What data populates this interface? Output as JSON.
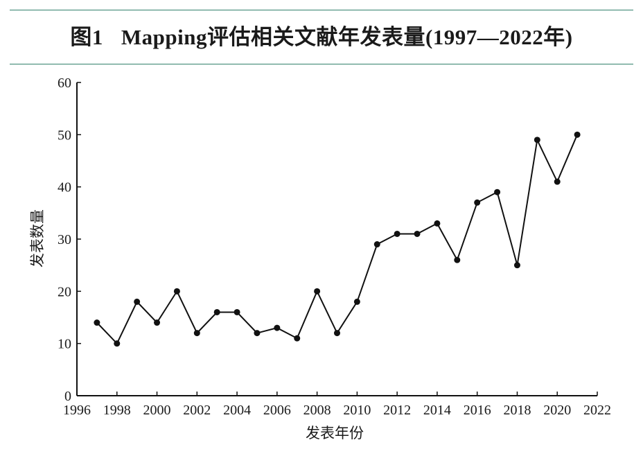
{
  "figure": {
    "label": "图1",
    "caption": "Mapping评估相关文献年发表量(1997—2022年)"
  },
  "colors": {
    "rule": "#2f7f6a",
    "line": "#111111",
    "text": "#1a1a1a"
  },
  "chart_data": {
    "type": "line",
    "title": "",
    "xlabel": "发表年份",
    "ylabel": "发表数量",
    "xlim": [
      1996,
      2022
    ],
    "ylim": [
      0,
      60
    ],
    "xticks": [
      1996,
      1998,
      2000,
      2002,
      2004,
      2006,
      2008,
      2010,
      2012,
      2014,
      2016,
      2018,
      2020,
      2022
    ],
    "yticks": [
      0,
      10,
      20,
      30,
      40,
      50,
      60
    ],
    "grid": false,
    "markers": "filled-circle",
    "x": [
      1997,
      1998,
      1999,
      2000,
      2001,
      2002,
      2003,
      2004,
      2005,
      2006,
      2007,
      2008,
      2009,
      2010,
      2011,
      2012,
      2013,
      2014,
      2015,
      2016,
      2017,
      2018,
      2019,
      2020,
      2021
    ],
    "values": [
      14,
      10,
      18,
      14,
      20,
      12,
      16,
      16,
      12,
      13,
      11,
      20,
      12,
      18,
      29,
      31,
      31,
      33,
      26,
      37,
      39,
      25,
      49,
      41,
      50
    ]
  }
}
